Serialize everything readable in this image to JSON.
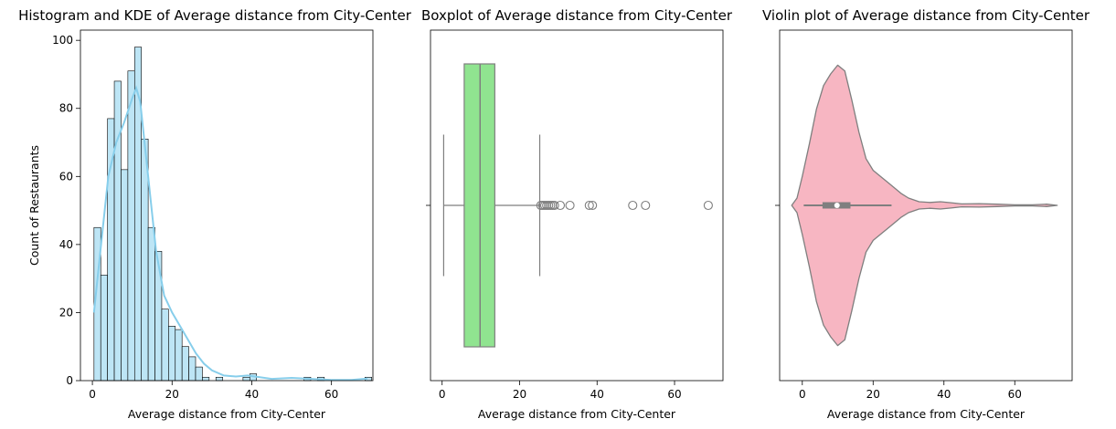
{
  "chart_data": [
    {
      "type": "bar",
      "subtype": "histogram-with-kde",
      "title": "Histogram and KDE of Average distance from City-Center",
      "xlabel": "Average distance from City-Center",
      "ylabel": "Count of Restaurants",
      "xlim": [
        -3,
        70.4
      ],
      "ylim": [
        0,
        103
      ],
      "xticks": [
        0,
        20,
        40,
        60
      ],
      "yticks": [
        0,
        20,
        40,
        60,
        80,
        100
      ],
      "bin_start": 0.4,
      "bin_width": 1.7,
      "counts": [
        45,
        31,
        77,
        88,
        62,
        91,
        98,
        71,
        45,
        38,
        21,
        16,
        15,
        10,
        7,
        4,
        1,
        0,
        1,
        0,
        0,
        0,
        1,
        2,
        0,
        0,
        0,
        0,
        0,
        0,
        0,
        1,
        0,
        1,
        0,
        0,
        0,
        0,
        0,
        0,
        1
      ],
      "kde": {
        "x": [
          0.4,
          2,
          4,
          6,
          8,
          10,
          11,
          12,
          14,
          16,
          18,
          20,
          22,
          24,
          26,
          28,
          30,
          33,
          36,
          39,
          42,
          45,
          50,
          55,
          60,
          65,
          69
        ],
        "y": [
          20,
          38,
          60,
          70,
          76,
          83,
          86,
          82,
          60,
          38,
          25,
          20,
          16,
          12,
          8,
          5,
          3,
          1.5,
          1.2,
          1.5,
          1,
          0.5,
          0.8,
          0.5,
          0.2,
          0.2,
          0.6
        ]
      },
      "colors": {
        "bar": "#bde5f5",
        "edge": "#000000",
        "kde": "#87ceeb"
      }
    },
    {
      "type": "box",
      "title": "Boxplot of Average distance from City-Center",
      "xlabel": "Average distance from City-Center",
      "xlim": [
        -3,
        72.5
      ],
      "xticks": [
        0,
        20,
        40,
        60
      ],
      "whisker_low": 0.4,
      "q1": 5.7,
      "median": 9.8,
      "q3": 13.6,
      "whisker_high": 25.2,
      "outliers": [
        25.5,
        26,
        26.5,
        27,
        27.5,
        28,
        28.5,
        29,
        30.5,
        33,
        38,
        38.8,
        49.2,
        52.5,
        68.7
      ],
      "colors": {
        "box": "#90e490",
        "line": "#7f7f7f"
      }
    },
    {
      "type": "violin",
      "title": "Violin plot of Average distance from City-Center",
      "xlabel": "Average distance from City-Center",
      "xlim": [
        -6.4,
        76.2
      ],
      "xticks": [
        0,
        20,
        40,
        60
      ],
      "density": {
        "x": [
          -3,
          -1.5,
          0,
          2,
          4,
          6,
          8,
          10,
          12,
          14,
          16,
          18,
          20,
          22,
          24,
          26,
          28,
          30,
          33,
          36,
          39,
          42,
          45,
          50,
          55,
          60,
          65,
          69,
          72
        ],
        "y": [
          0,
          0.05,
          0.2,
          0.42,
          0.66,
          0.82,
          0.9,
          0.96,
          0.92,
          0.72,
          0.5,
          0.32,
          0.24,
          0.2,
          0.16,
          0.12,
          0.08,
          0.05,
          0.025,
          0.02,
          0.025,
          0.018,
          0.01,
          0.012,
          0.008,
          0.004,
          0.004,
          0.008,
          0
        ]
      },
      "q1": 5.7,
      "median": 9.8,
      "q3": 13.6,
      "whisker_low": 0.4,
      "whisker_high": 25.2,
      "colors": {
        "fill": "#f7b6c2",
        "line": "#7f7f7f"
      }
    }
  ]
}
